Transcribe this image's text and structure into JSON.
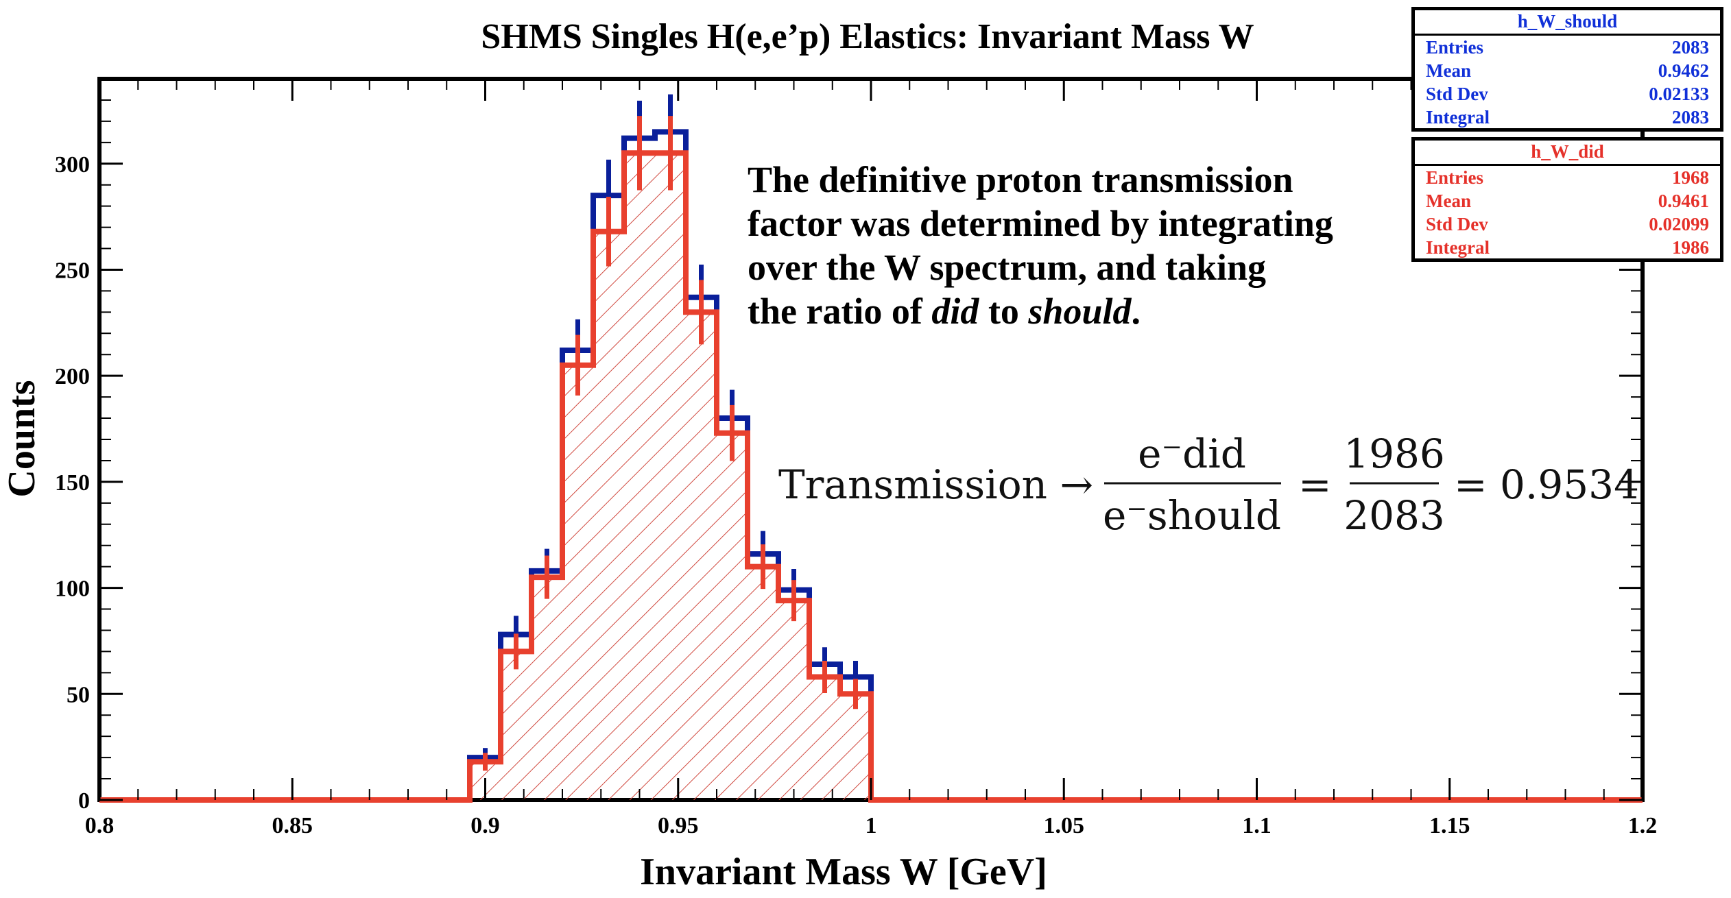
{
  "chart_data": {
    "type": "histogram",
    "title": "SHMS Singles H(e,e’p) Elastics: Invariant Mass W",
    "xlabel": "Invariant Mass W [GeV]",
    "ylabel": "Counts",
    "xlim": [
      0.8,
      1.2
    ],
    "ylim": [
      0,
      340
    ],
    "x_tick_labels": [
      "0.8",
      "0.85",
      "0.9",
      "0.95",
      "1",
      "1.05",
      "1.1",
      "1.15",
      "1.2"
    ],
    "x_ticks": [
      0.8,
      0.85,
      0.9,
      0.95,
      1.0,
      1.05,
      1.1,
      1.15,
      1.2
    ],
    "y_tick_labels": [
      "0",
      "50",
      "100",
      "150",
      "200",
      "250",
      "300"
    ],
    "y_ticks": [
      0,
      50,
      100,
      150,
      200,
      250,
      300
    ],
    "bin_width": 0.008,
    "bins_x_start": [
      0.896,
      0.904,
      0.912,
      0.92,
      0.928,
      0.936,
      0.944,
      0.952,
      0.96,
      0.968,
      0.976,
      0.984,
      0.992
    ],
    "series": [
      {
        "name": "h_W_should",
        "color": "#0a1f9a",
        "values": [
          20,
          78,
          108,
          212,
          285,
          312,
          315,
          237,
          180,
          116,
          99,
          64,
          58
        ],
        "errors": [
          4.5,
          8.8,
          10.4,
          14.6,
          16.9,
          17.7,
          17.7,
          15.4,
          13.4,
          10.8,
          9.9,
          8.0,
          7.6
        ]
      },
      {
        "name": "h_W_did",
        "color": "#e8402e",
        "hatched": true,
        "values": [
          18,
          70,
          105,
          205,
          268,
          305,
          305,
          230,
          173,
          110,
          94,
          58,
          50
        ],
        "errors": [
          4.2,
          8.4,
          10.2,
          14.3,
          16.4,
          17.5,
          17.5,
          15.2,
          13.2,
          10.5,
          9.7,
          7.6,
          7.1
        ]
      }
    ]
  },
  "stats": [
    {
      "name": "h_W_should",
      "color": "#1030d8",
      "rows": [
        [
          "Entries",
          "2083"
        ],
        [
          "Mean",
          "0.9462"
        ],
        [
          "Std Dev",
          "0.02133"
        ],
        [
          "Integral",
          "2083"
        ]
      ]
    },
    {
      "name": "h_W_did",
      "color": "#e5312a",
      "rows": [
        [
          "Entries",
          "1968"
        ],
        [
          "Mean",
          "0.9461"
        ],
        [
          "Std Dev",
          "0.02099"
        ],
        [
          "Integral",
          "1986"
        ]
      ]
    }
  ],
  "annotation": {
    "line1": "The definitive proton transmission",
    "line2": "factor was determined by integrating",
    "line3": "over the W spectrum, and taking",
    "line4_prefix": "the ratio of ",
    "did": "did",
    "to": " to ",
    "should": "should",
    "line4_suffix": "."
  },
  "formula": {
    "lhs": "Transmission →",
    "num1": "e⁻did",
    "den1": "e⁻should",
    "eq1": "=",
    "num2": "1986",
    "den2": "2083",
    "eq2": "= 0.9534"
  }
}
